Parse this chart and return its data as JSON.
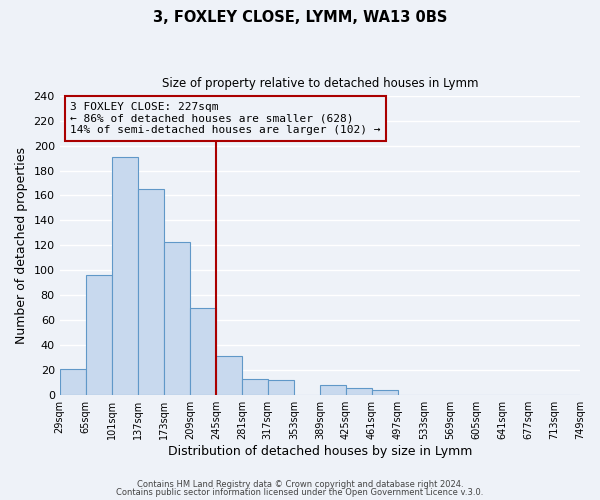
{
  "title": "3, FOXLEY CLOSE, LYMM, WA13 0BS",
  "subtitle": "Size of property relative to detached houses in Lymm",
  "xlabel": "Distribution of detached houses by size in Lymm",
  "ylabel": "Number of detached properties",
  "bar_color": "#c8d9ee",
  "bar_edge_color": "#6098c8",
  "background_color": "#eef2f8",
  "grid_color": "#ffffff",
  "bins": [
    "29sqm",
    "65sqm",
    "101sqm",
    "137sqm",
    "173sqm",
    "209sqm",
    "245sqm",
    "281sqm",
    "317sqm",
    "353sqm",
    "389sqm",
    "425sqm",
    "461sqm",
    "497sqm",
    "533sqm",
    "569sqm",
    "605sqm",
    "641sqm",
    "677sqm",
    "713sqm",
    "749sqm"
  ],
  "values": [
    21,
    96,
    191,
    165,
    123,
    70,
    31,
    13,
    12,
    0,
    8,
    5,
    4,
    0,
    0,
    0,
    0,
    0,
    0,
    0
  ],
  "vline_x": 6.0,
  "annotation_title": "3 FOXLEY CLOSE: 227sqm",
  "annotation_line1": "← 86% of detached houses are smaller (628)",
  "annotation_line2": "14% of semi-detached houses are larger (102) →",
  "vline_color": "#aa0000",
  "annotation_box_edge_color": "#aa0000",
  "footer1": "Contains HM Land Registry data © Crown copyright and database right 2024.",
  "footer2": "Contains public sector information licensed under the Open Government Licence v.3.0.",
  "ylim": [
    0,
    240
  ],
  "n_bars": 20
}
